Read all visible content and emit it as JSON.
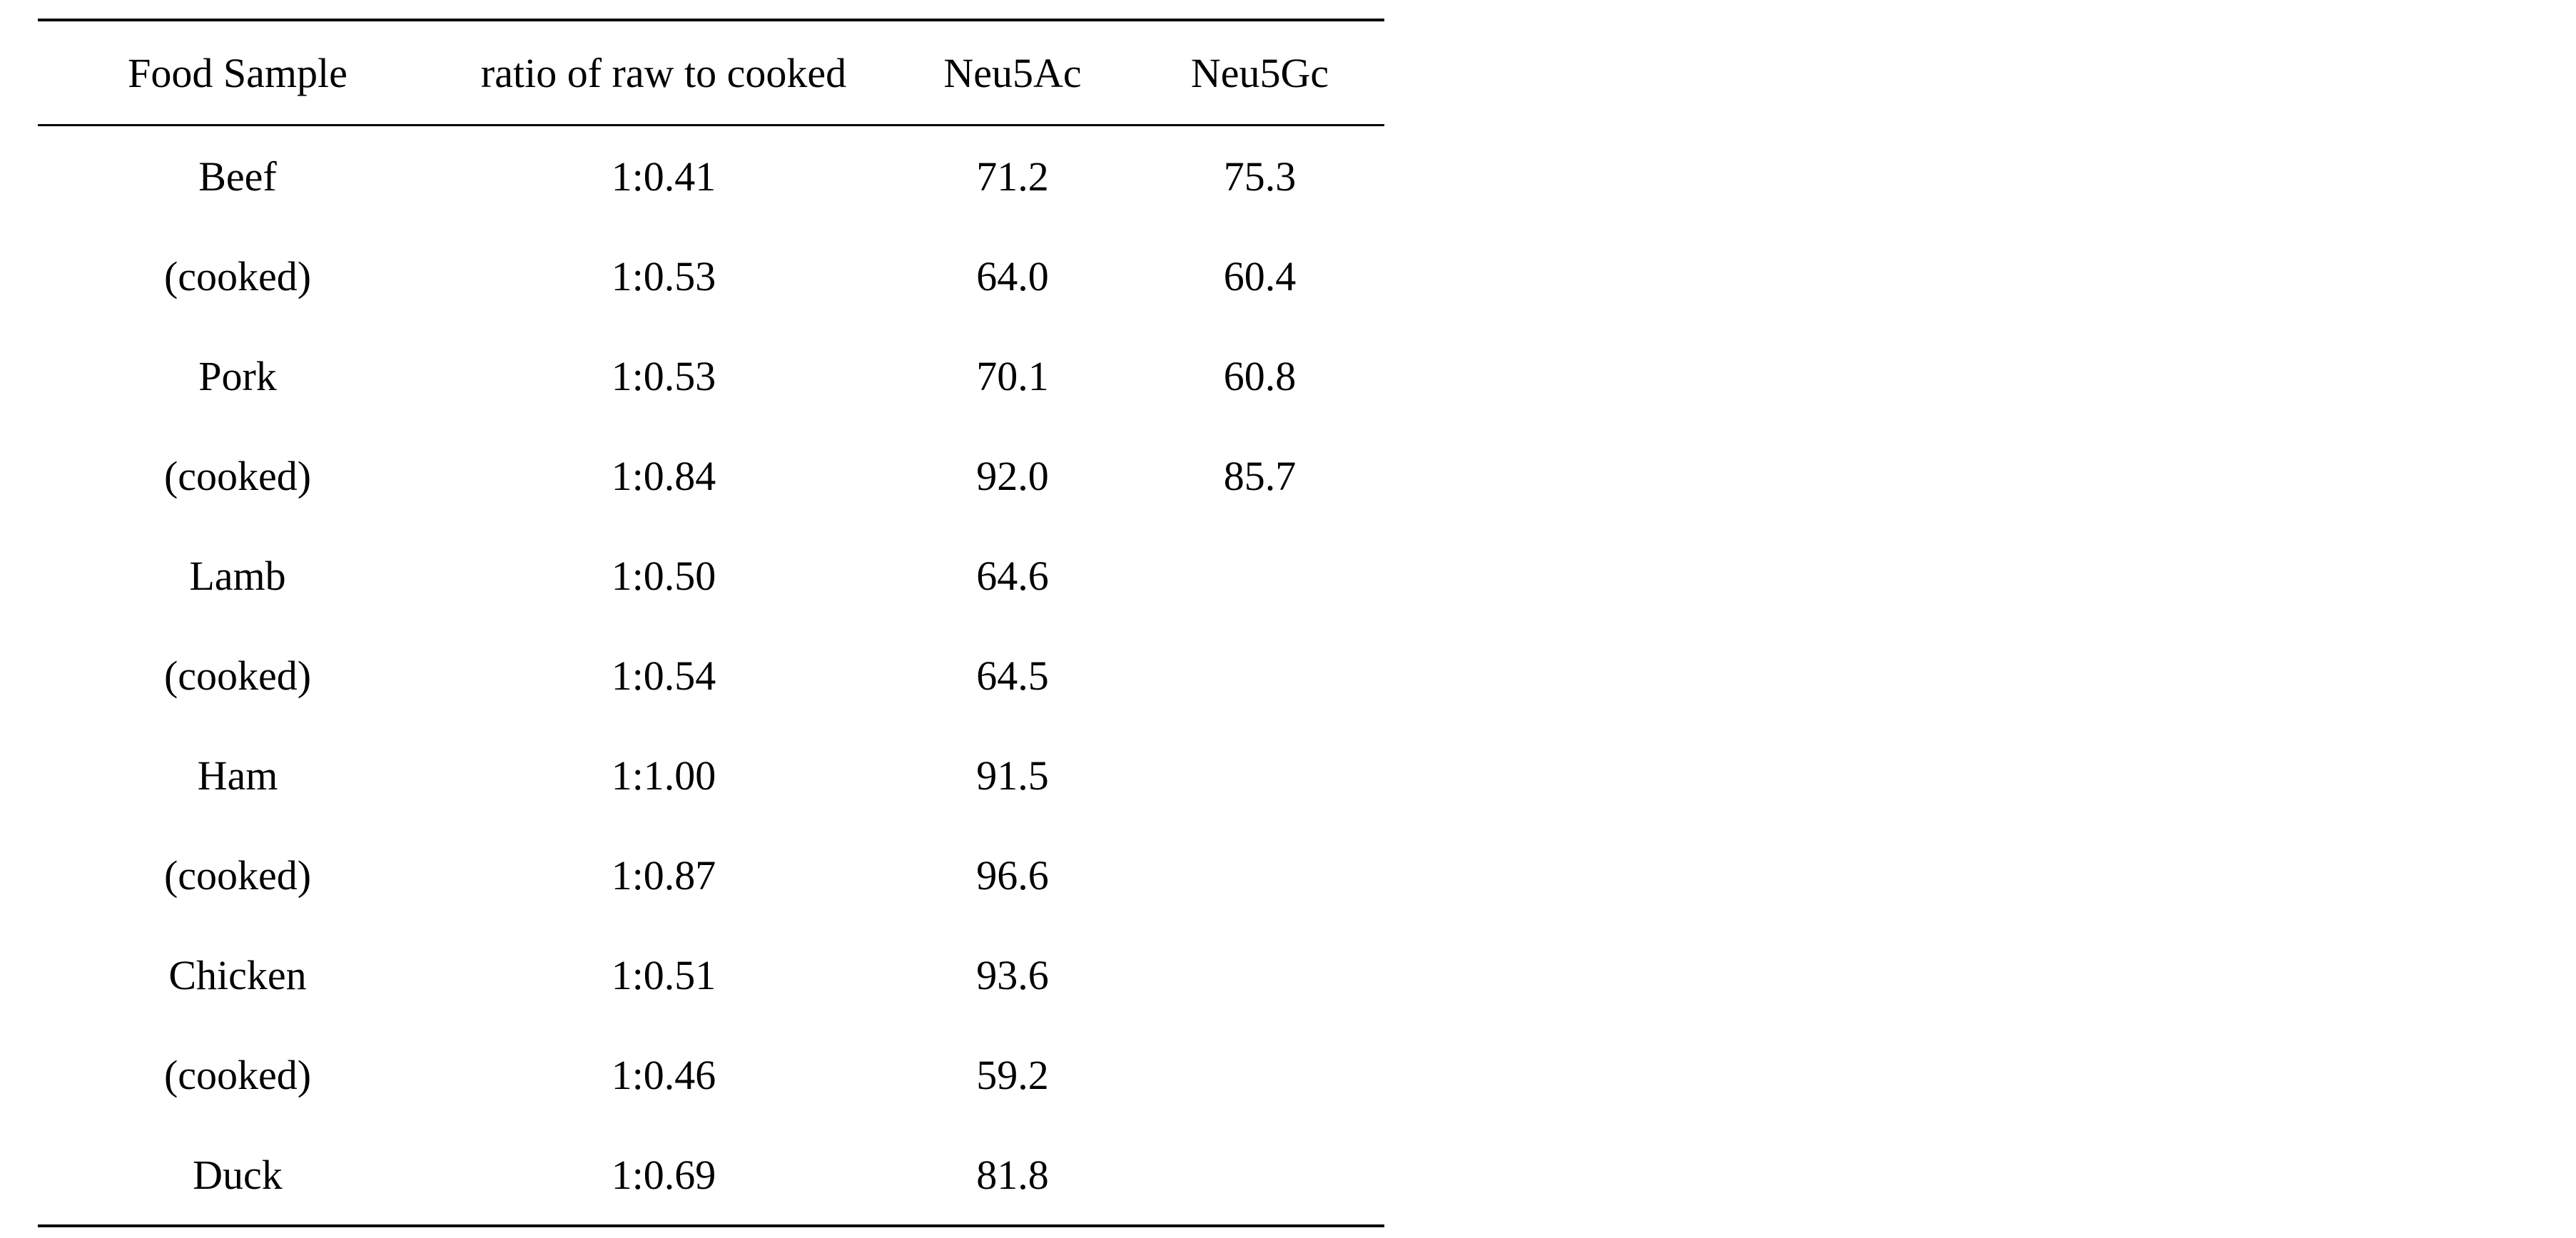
{
  "table": {
    "headers": [
      "Food Sample",
      "ratio of raw to cooked",
      "Neu5Ac",
      "Neu5Gc"
    ],
    "rows": [
      [
        "Beef",
        "1:0.41",
        "71.2",
        "75.3"
      ],
      [
        "(cooked)",
        "1:0.53",
        "64.0",
        "60.4"
      ],
      [
        "Pork",
        "1:0.53",
        "70.1",
        "60.8"
      ],
      [
        "(cooked)",
        "1:0.84",
        "92.0",
        "85.7"
      ],
      [
        "Lamb",
        "1:0.50",
        "64.6",
        ""
      ],
      [
        "(cooked)",
        "1:0.54",
        "64.5",
        ""
      ],
      [
        "Ham",
        "1:1.00",
        "91.5",
        ""
      ],
      [
        "(cooked)",
        "1:0.87",
        "96.6",
        ""
      ],
      [
        "Chicken",
        "1:0.51",
        "93.6",
        ""
      ],
      [
        "(cooked)",
        "1:0.46",
        "59.2",
        ""
      ],
      [
        "Duck",
        "1:0.69",
        "81.8",
        ""
      ]
    ]
  }
}
